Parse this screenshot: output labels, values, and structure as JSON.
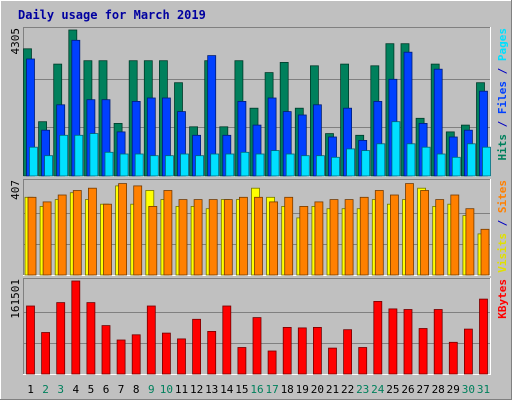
{
  "chart_data": {
    "type": "bar",
    "title": "Daily usage for March 2019",
    "categories": [
      "1",
      "2",
      "3",
      "4",
      "5",
      "6",
      "7",
      "8",
      "9",
      "10",
      "11",
      "12",
      "13",
      "14",
      "15",
      "16",
      "17",
      "18",
      "19",
      "20",
      "21",
      "22",
      "23",
      "24",
      "25",
      "26",
      "27",
      "28",
      "29",
      "30",
      "31"
    ],
    "weekend_days": [
      "2",
      "3",
      "9",
      "10",
      "16",
      "17",
      "23",
      "24",
      "30",
      "31"
    ],
    "panels": [
      {
        "id": "hits",
        "ymax_label": "4305",
        "ylim": [
          0,
          4305
        ],
        "legend": [
          {
            "text": "Hits",
            "color": "#00805c"
          },
          {
            "text": " / ",
            "color": "#0000c0"
          },
          {
            "text": "Files",
            "color": "#0040ff"
          },
          {
            "text": " / ",
            "color": "#0000c0"
          },
          {
            "text": "Pages",
            "color": "#00e0ff"
          }
        ],
        "series": [
          {
            "name": "Hits",
            "color": "#00805c",
            "values": [
              3750,
              1600,
              3300,
              4305,
              3400,
              3400,
              1550,
              3400,
              3400,
              3400,
              2750,
              1450,
              3400,
              1450,
              3400,
              2000,
              3050,
              3350,
              2000,
              3250,
              1250,
              3300,
              1200,
              3250,
              3900,
              3900,
              1700,
              3300,
              1300,
              1500,
              2750
            ]
          },
          {
            "name": "Files",
            "color": "#0040ff",
            "values": [
              3450,
              1350,
              2100,
              4000,
              2250,
              2250,
              1300,
              2200,
              2300,
              2300,
              1900,
              1200,
              3550,
              1200,
              2200,
              1500,
              2300,
              1900,
              1800,
              2100,
              1150,
              2000,
              1050,
              2200,
              2850,
              3650,
              1550,
              3150,
              1150,
              1350,
              2500
            ]
          },
          {
            "name": "Pages",
            "color": "#00e0ff",
            "values": [
              850,
              600,
              1200,
              1200,
              1250,
              700,
              650,
              650,
              600,
              600,
              650,
              600,
              650,
              650,
              700,
              650,
              750,
              650,
              600,
              600,
              550,
              800,
              750,
              950,
              1600,
              950,
              850,
              650,
              550,
              950,
              850
            ]
          }
        ]
      },
      {
        "id": "visits",
        "ymax_label": "407",
        "ylim": [
          0,
          407
        ],
        "legend": [
          {
            "text": "Visits",
            "color": "#e0e000"
          },
          {
            "text": " / ",
            "color": "#0000c0"
          },
          {
            "text": "Sites",
            "color": "#ff8000"
          }
        ],
        "series": [
          {
            "name": "Visits",
            "color": "#ffff00",
            "values": [
              340,
              300,
              330,
              360,
              330,
              310,
              390,
              310,
              370,
              330,
              300,
              300,
              290,
              330,
              330,
              380,
              340,
              300,
              250,
              300,
              290,
              290,
              290,
              330,
              310,
              330,
              380,
              300,
              310,
              260,
              180
            ]
          },
          {
            "name": "Sites",
            "color": "#ff8000",
            "values": [
              340,
              320,
              350,
              370,
              380,
              310,
              400,
              390,
              300,
              370,
              330,
              330,
              330,
              330,
              340,
              340,
              320,
              340,
              300,
              320,
              330,
              330,
              340,
              370,
              350,
              400,
              370,
              330,
              350,
              290,
              200
            ]
          }
        ]
      },
      {
        "id": "kbytes",
        "ymax_label": "161501",
        "ylim": [
          0,
          161501
        ],
        "legend": [
          {
            "text": "KBytes",
            "color": "#ff0000"
          }
        ],
        "series": [
          {
            "name": "KBytes",
            "color": "#ff0000",
            "values": [
              118000,
              72000,
              124000,
              161501,
              124000,
              84000,
              59000,
              68000,
              118000,
              71000,
              61000,
              95000,
              74000,
              118000,
              46000,
              98000,
              40000,
              81000,
              80000,
              81000,
              45000,
              77000,
              46000,
              126000,
              113000,
              112000,
              79000,
              112000,
              55000,
              78000,
              130000
            ]
          }
        ]
      }
    ]
  }
}
